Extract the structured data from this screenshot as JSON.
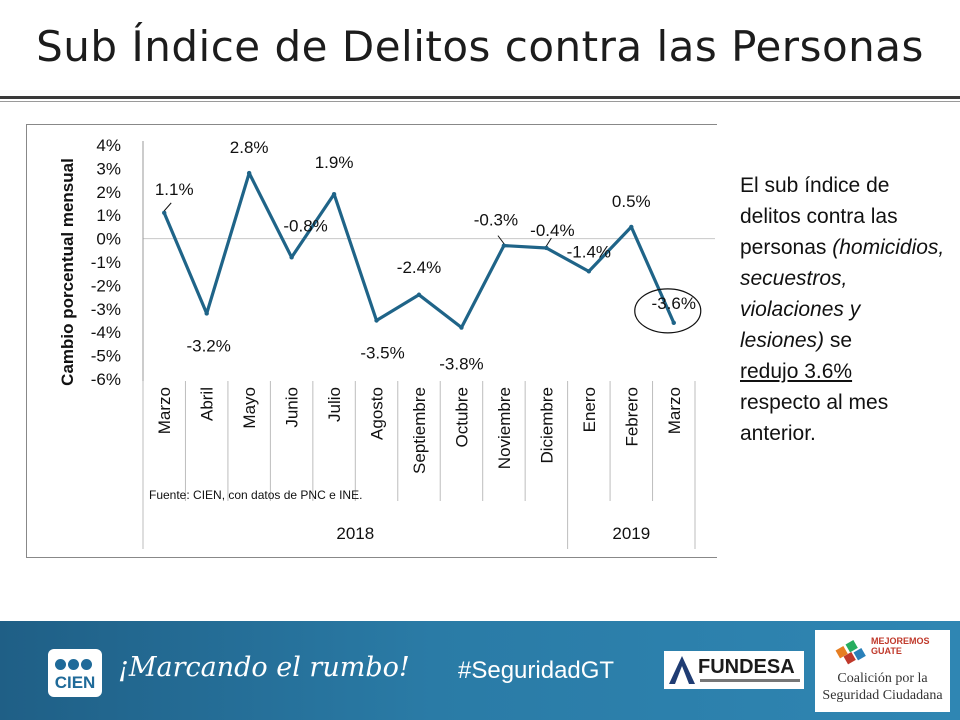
{
  "title": "Sub Índice de Delitos contra las Personas",
  "side_text": {
    "part1": "El sub índice de delitos contra las personas",
    "part2": "(homicidios, secuestros, violaciones y lesiones)",
    "part3": "se",
    "part4": "redujo 3.6%",
    "part5": "respecto al mes anterior."
  },
  "chart_data": {
    "type": "line",
    "ylabel": "Cambio porcentual mensual",
    "ylim": [
      -6,
      4
    ],
    "yticks": [
      "4%",
      "3%",
      "2%",
      "1%",
      "0%",
      "-1%",
      "-2%",
      "-3%",
      "-4%",
      "-5%",
      "-6%"
    ],
    "yticks_values": [
      4,
      3,
      2,
      1,
      0,
      -1,
      -2,
      -3,
      -4,
      -5,
      -6
    ],
    "categories": [
      "Marzo",
      "Abril",
      "Mayo",
      "Junio",
      "Julio",
      "Agosto",
      "Septiembre",
      "Octubre",
      "Noviembre",
      "Diciembre",
      "Enero",
      "Febrero",
      "Marzo"
    ],
    "values": [
      1.1,
      -3.2,
      2.8,
      -0.8,
      1.9,
      -3.5,
      -2.4,
      -3.8,
      -0.3,
      -0.4,
      -1.4,
      0.5,
      -3.6
    ],
    "data_labels": [
      "1.1%",
      "-3.2%",
      "2.8%",
      "-0.8%",
      "1.9%",
      "-3.5%",
      "-2.4%",
      "-3.8%",
      "-0.3%",
      "-0.4%",
      "-1.4%",
      "0.5%",
      "-3.6%"
    ],
    "year_groups": [
      {
        "label": "2018",
        "start": 0,
        "end": 9
      },
      {
        "label": "2019",
        "start": 10,
        "end": 12
      }
    ],
    "source_note": "Fuente: CIEN, con datos de PNC e INE.",
    "line_color": "#1f6488",
    "highlight_index": 12
  },
  "footer": {
    "cien_logo_text": "CIEN",
    "slogan": "¡Marcando el rumbo!",
    "hashtag": "#SeguridadGT",
    "fundesa_logo_text": "FUNDESA",
    "mejoremos_line1": "MEJOREMOS",
    "mejoremos_line2": "GUATE",
    "coalicion_text": "Coalición por la Seguridad Ciudadana"
  }
}
